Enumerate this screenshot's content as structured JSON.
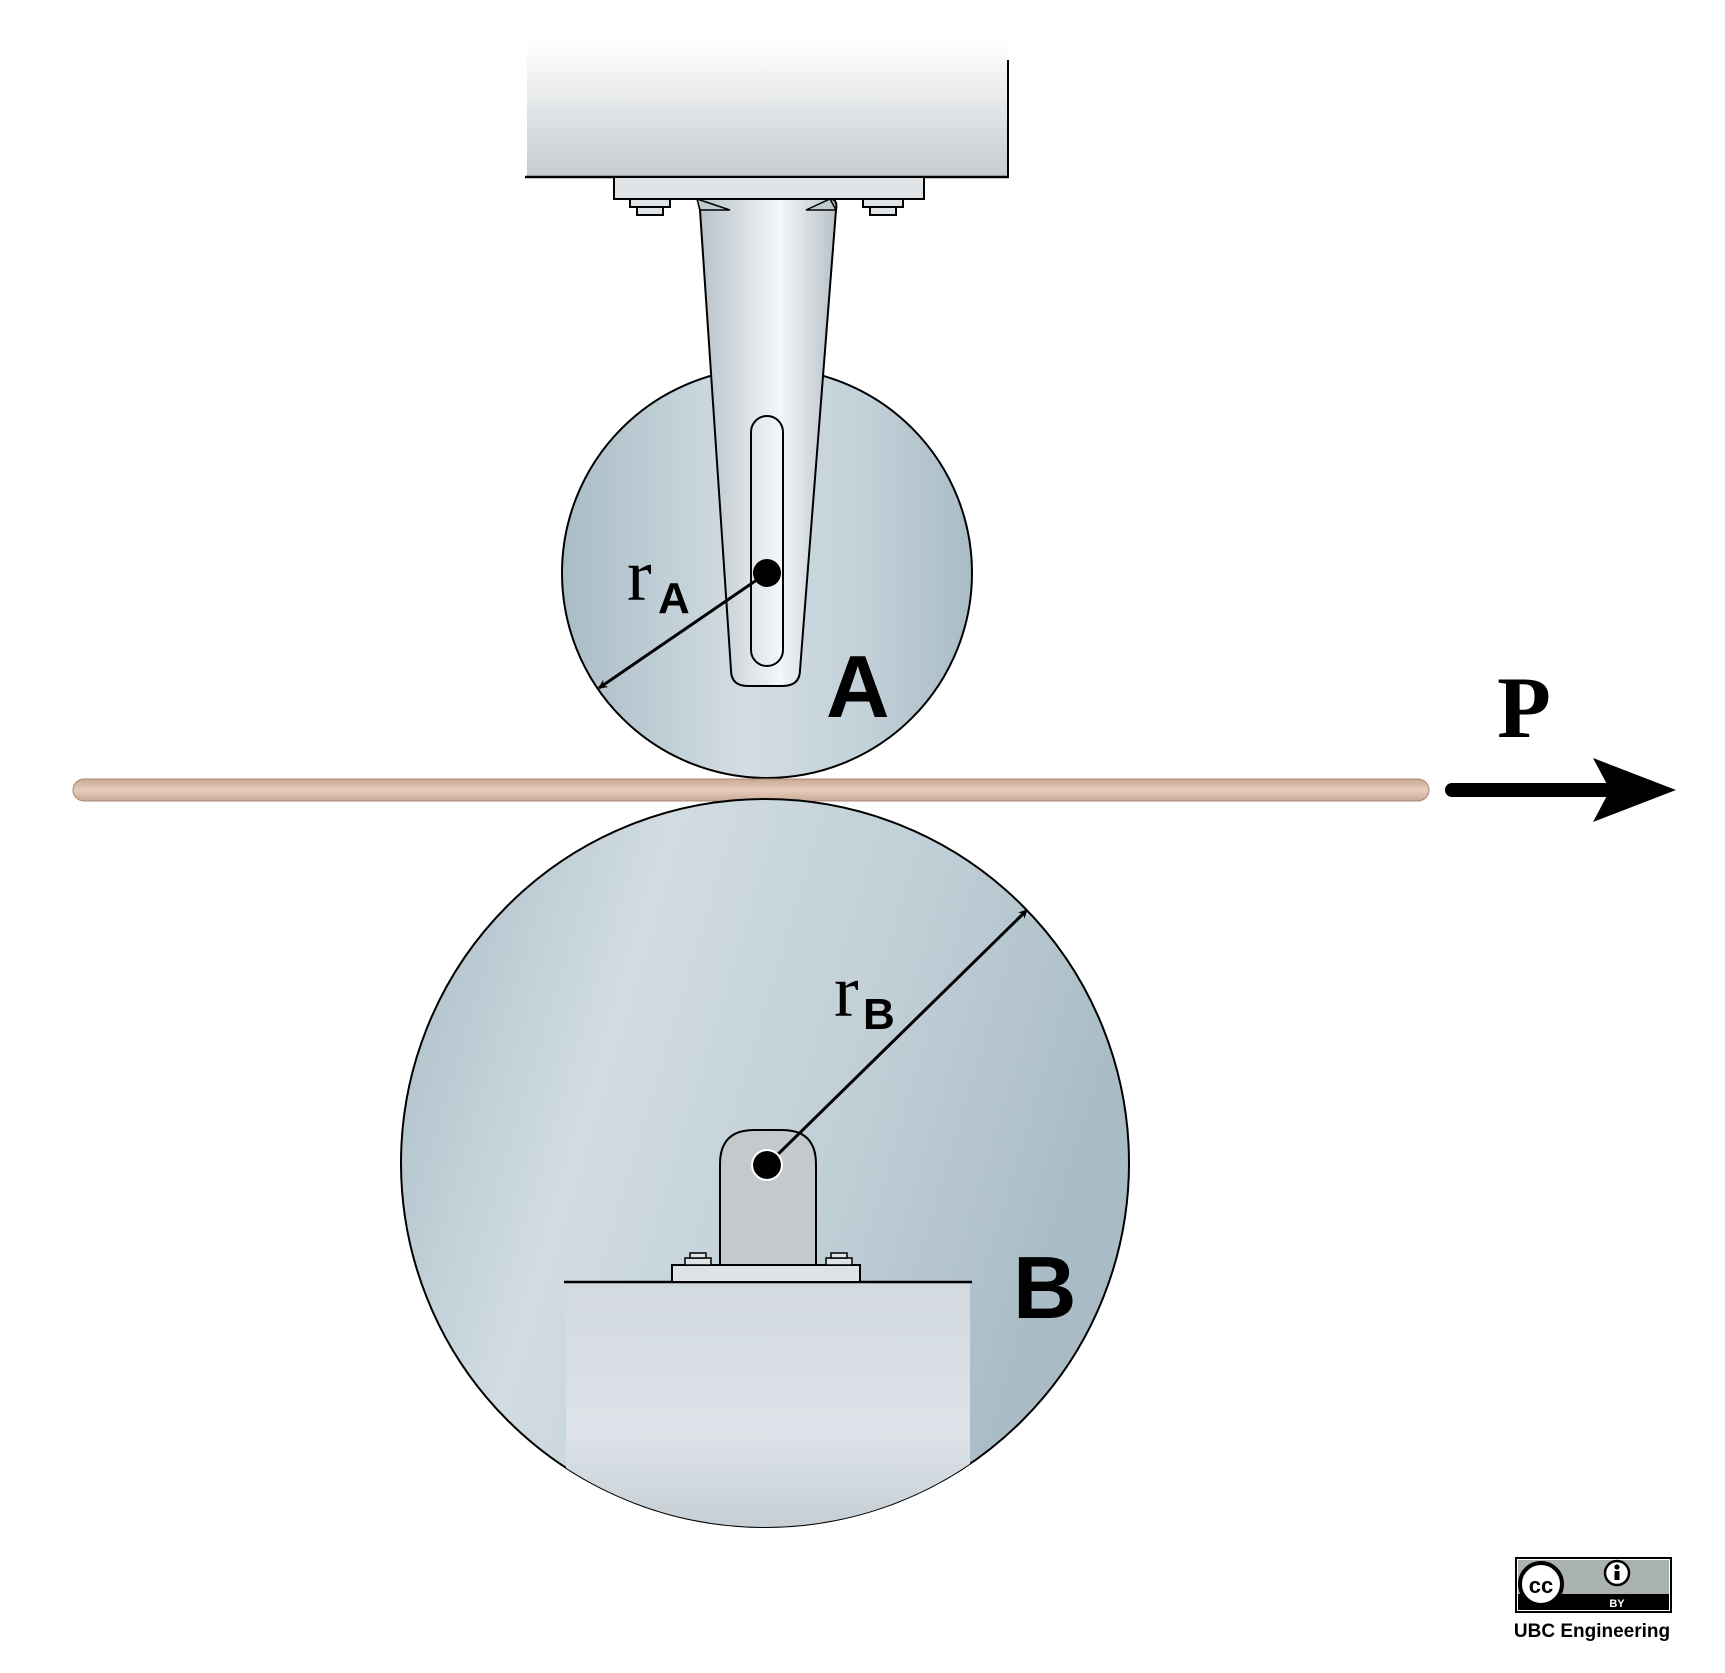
{
  "labels": {
    "roller_a": "A",
    "roller_b": "B",
    "radius_a_main": "r",
    "radius_a_sub": "A",
    "radius_b_main": "r",
    "radius_b_sub": "B",
    "force": "P"
  },
  "license": {
    "badge_cc": "cc",
    "badge_by": "BY",
    "credit": "UBC Engineering"
  },
  "colors": {
    "roller_light": "#d0dbe1",
    "roller_dark": "#a9bcc6",
    "strip": "#e2c3b0",
    "strip_edge": "#b89684",
    "bracket": "#c4c9cc",
    "support_light": "#dde3e8",
    "support_dark": "#b8c1c8",
    "ink": "#000000"
  }
}
